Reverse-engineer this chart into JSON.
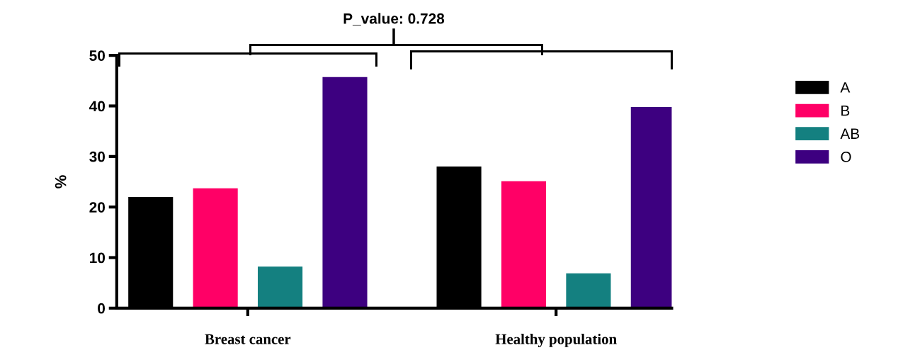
{
  "chart_data": {
    "type": "bar",
    "ylabel": "%",
    "categories": [
      "Breast cancer",
      "Healthy population"
    ],
    "series": [
      {
        "name": "A",
        "color": "#000000",
        "values": [
          22,
          28
        ]
      },
      {
        "name": "B",
        "color": "#ff0066",
        "values": [
          23.7,
          25.1
        ]
      },
      {
        "name": "AB",
        "color": "#148080",
        "values": [
          8.2,
          6.9
        ]
      },
      {
        "name": "O",
        "color": "#3d0080",
        "values": [
          45.7,
          39.8
        ]
      }
    ],
    "ylim": [
      0,
      50
    ],
    "yticks": [
      0,
      10,
      20,
      30,
      40,
      50
    ],
    "grid": false,
    "legend": "right",
    "annotations": [
      "P_value: 0.728"
    ]
  }
}
